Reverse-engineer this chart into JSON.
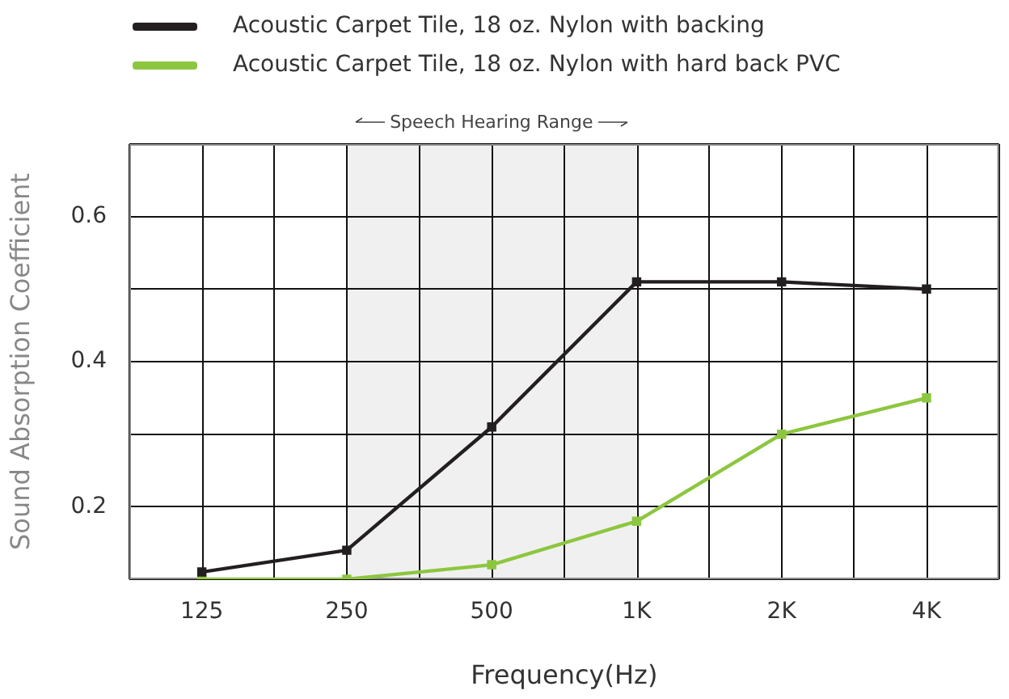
{
  "chart_data": {
    "type": "line",
    "xlabel": "Frequency(Hz)",
    "ylabel": "Sound Absorption Coefficient",
    "categories": [
      "125",
      "250",
      "500",
      "1K",
      "2K",
      "4K"
    ],
    "series": [
      {
        "name": "Acoustic Carpet Tile, 18 oz. Nylon with backing",
        "color": "#231f20",
        "values": [
          0.11,
          0.14,
          0.31,
          0.51,
          0.51,
          0.5
        ]
      },
      {
        "name": "Acoustic Carpet Tile, 18 oz. Nylon with hard back PVC",
        "color": "#8dc63f",
        "values": [
          0.1,
          0.1,
          0.12,
          0.18,
          0.3,
          0.35
        ]
      }
    ],
    "ylim": [
      0.1,
      0.7
    ],
    "yticks": [
      {
        "value": 0.1,
        "label": null
      },
      0.2,
      {
        "value": 0.3,
        "label": null
      },
      0.4,
      {
        "value": 0.5,
        "label": null
      },
      0.6,
      {
        "value": 0.7,
        "label": null
      }
    ],
    "bands": [
      {
        "axis": "x",
        "from": "250",
        "to": "1K",
        "label": "Speech Hearing Range",
        "color": "#f0f0f0"
      }
    ],
    "grid": true,
    "legend": "top left",
    "marker": "square",
    "line_style": "solid"
  }
}
